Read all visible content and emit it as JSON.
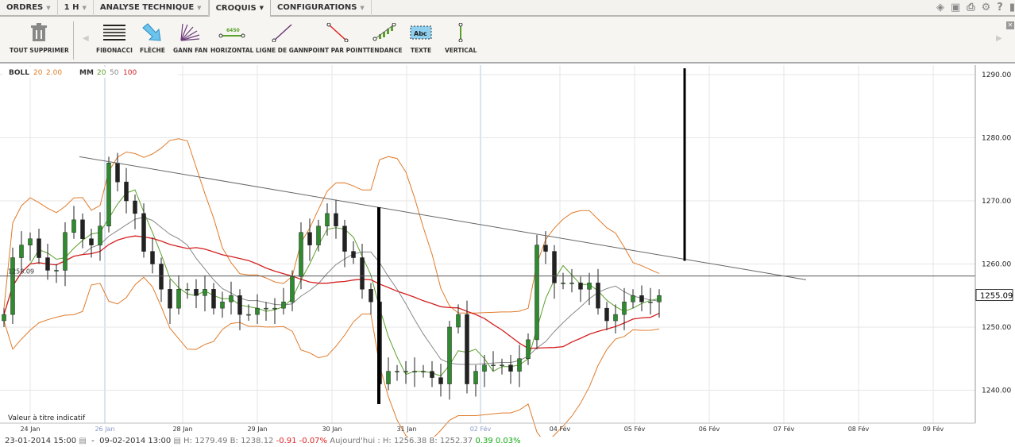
{
  "menu": [
    {
      "label": "ORDRES"
    },
    {
      "label": "1 H"
    },
    {
      "label": "ANALYSE TECHNIQUE"
    },
    {
      "label": "CROQUIS",
      "active": true
    },
    {
      "label": "CONFIGURATIONS"
    }
  ],
  "top_icons": [
    "layers-icon",
    "image-icon",
    "print-icon",
    "gear-icon",
    "help-icon",
    "chat-icon"
  ],
  "toolbar": {
    "delete_all": "TOUT SUPPRIMER",
    "tools": [
      {
        "label": "FIBONACCI",
        "icon": "fibonacci-icon"
      },
      {
        "label": "FLÈCHE",
        "icon": "arrow-icon"
      },
      {
        "label": "GANN FAN",
        "icon": "gann-fan-icon"
      },
      {
        "label": "HORIZONTAL",
        "icon": "horizontal-line-icon",
        "sub": "6450"
      },
      {
        "label": "LIGNE DE GANN",
        "icon": "gann-line-icon"
      },
      {
        "label": "POINT PAR POINT",
        "icon": "point-line-icon"
      },
      {
        "label": "TENDANCE",
        "icon": "trend-icon"
      },
      {
        "label": "TEXTE",
        "icon": "text-icon",
        "sub": "Abc"
      },
      {
        "label": "VERTICAL",
        "icon": "vertical-line-icon"
      }
    ]
  },
  "legend": {
    "boll": "BOLL",
    "boll_p1": "20",
    "boll_p2": "2.00",
    "mm": "MM",
    "mm_p1": "20",
    "mm_p2": "50",
    "mm_p3": "100"
  },
  "colors": {
    "boll": "#e07b2a",
    "mm20": "#5aa02c",
    "mm50": "#888888",
    "mm100": "#d42020",
    "up": "#2e8b2e",
    "down": "#222222"
  },
  "chart_data": {
    "type": "candlestick",
    "x_tick_labels": [
      "24 Jan",
      "26 Jan",
      "28 Jan",
      "29 Jan",
      "30 Jan",
      "31 Jan",
      "02 Fév",
      "04 Fév",
      "05 Fév",
      "06 Fév",
      "07 Fév",
      "08 Fév",
      "09 Fév"
    ],
    "y_tick_labels": [
      "1290.00",
      "1280.00",
      "1270.00",
      "1260.00",
      "1250.00",
      "1240.00"
    ],
    "ylim": [
      1236,
      1292
    ],
    "closes": [
      1252,
      1261,
      1263,
      1264,
      1261,
      1259,
      1259,
      1265,
      1267,
      1264,
      1263,
      1266,
      1276,
      1273,
      1270,
      1268,
      1262,
      1260,
      1256,
      1253,
      1256,
      1256,
      1255,
      1256,
      1253,
      1254,
      1255,
      1252,
      1252,
      1253,
      1253,
      1253,
      1254,
      1258,
      1265,
      1263,
      1266,
      1268,
      1266,
      1262,
      1261,
      1256,
      1254,
      1241,
      1243,
      1243,
      1243,
      1243,
      1243,
      1242,
      1241,
      1250,
      1252,
      1241,
      1243,
      1244,
      1244,
      1244,
      1243,
      1245,
      1248,
      1263,
      1262,
      1257,
      1257,
      1257,
      1256,
      1257,
      1253,
      1251,
      1252,
      1254,
      1255,
      1254,
      1254,
      1255
    ],
    "horizontal_line": {
      "value": 1258.09,
      "label": "1258.09"
    },
    "current_price": "1255.09",
    "trend_line": [
      [
        1277,
        1257.5
      ]
    ],
    "annotation": "Valeur à titre indicatif"
  },
  "footer": {
    "from": "23-01-2014 15:00",
    "to": "09-02-2014 13:00",
    "h": "H: 1279.49",
    "b": "B: 1238.12",
    "chg": "-0.91",
    "pct": "-0.07%",
    "today": "Aujourd'hui : H: 1256.38 B: 1252.37",
    "tchg": "0.39",
    "tpct": "0.03%"
  }
}
